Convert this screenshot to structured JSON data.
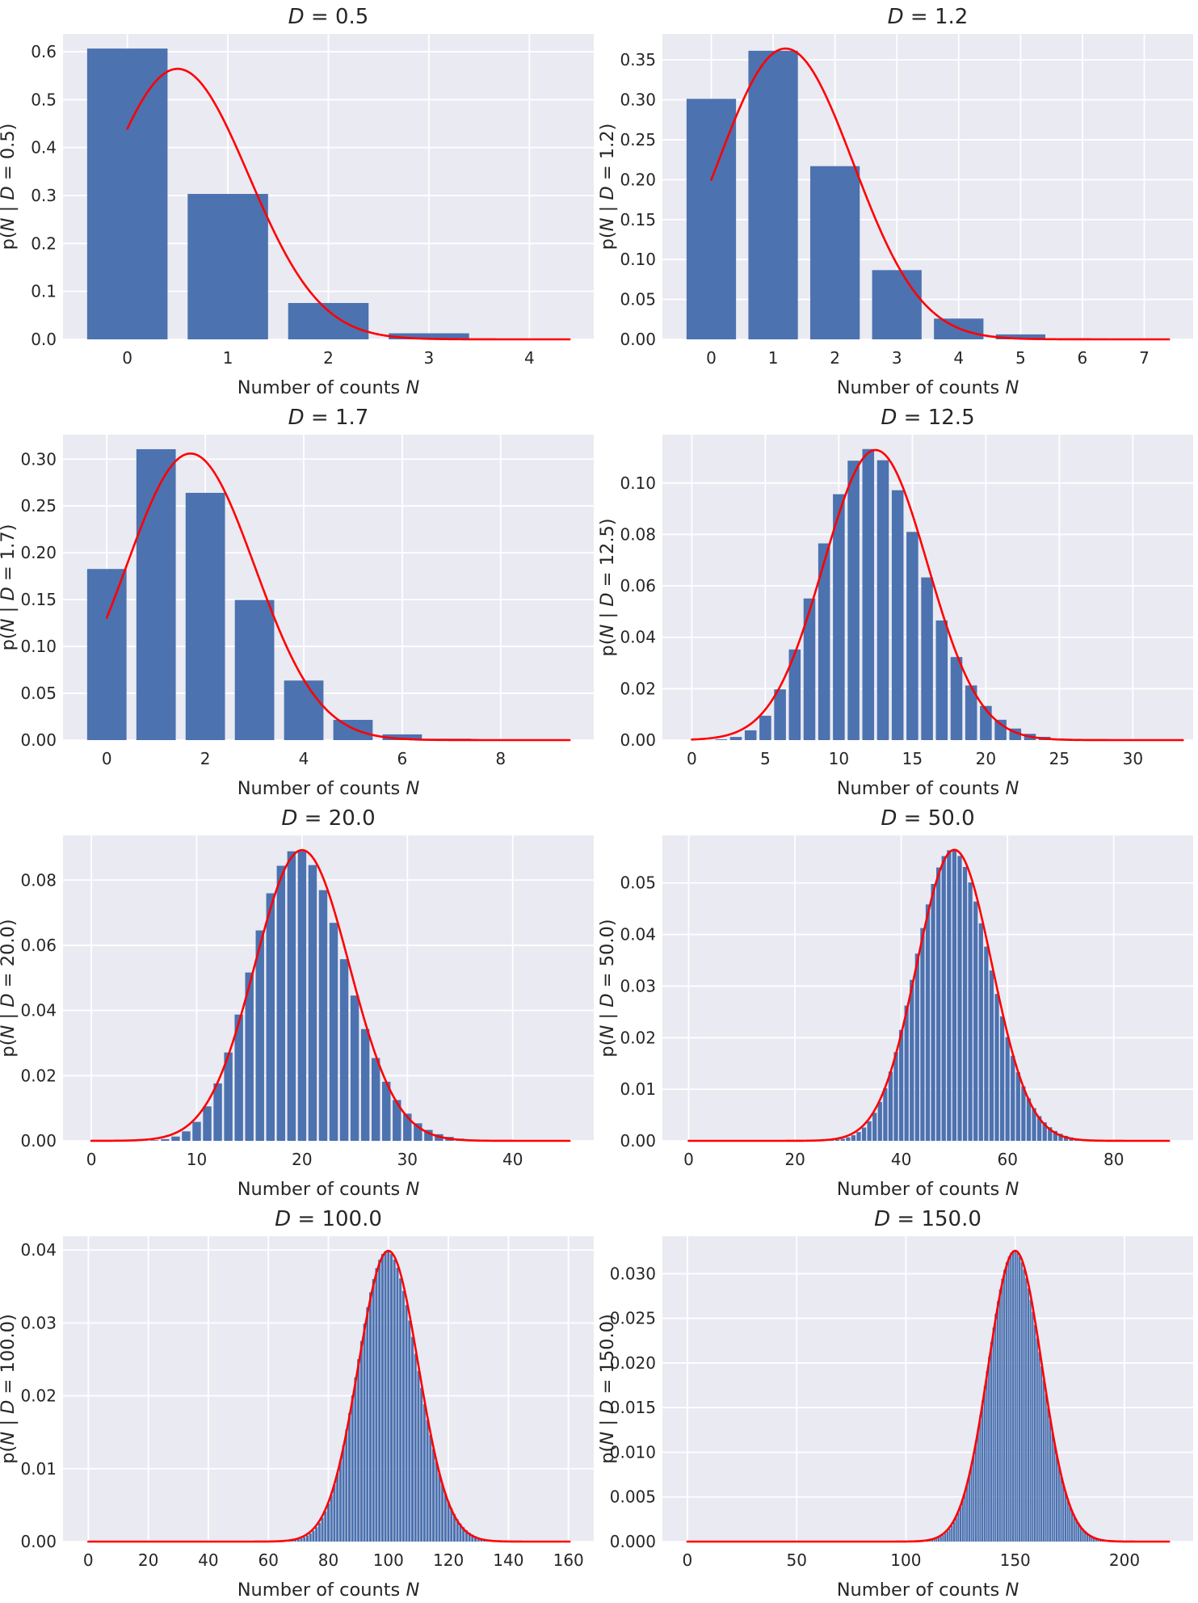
{
  "figure": {
    "description": "Grid of 8 subplots comparing Poisson count distributions (blue bars) with Gaussian approximations (red curve) for increasing mean D",
    "rows": 4,
    "cols": 2,
    "colors": {
      "bar": "#4c72b0",
      "curve": "#ff0000",
      "axes_background": "#eaeaf2",
      "gridline": "#ffffff",
      "text": "#262626",
      "figure_background": "#ffffff"
    }
  },
  "chart_data": [
    {
      "type": "bar",
      "title": "D = 0.5",
      "ylabel": "p(N | D = 0.5)",
      "xlabel": "Number of counts N",
      "D": 0.5,
      "n_max": 4,
      "bar_values": [
        0.6065,
        0.3033,
        0.0758,
        0.0126,
        0.0016
      ],
      "overlay": {
        "type": "gaussian",
        "mean": 0.5,
        "sigma": 0.7071,
        "peak": 0.5642
      },
      "xticks": [
        0,
        1,
        2,
        3,
        4
      ],
      "ytick_labels": [
        "0.0",
        "0.1",
        "0.2",
        "0.3",
        "0.4",
        "0.5",
        "0.6"
      ],
      "xlim": [
        -0.64,
        4.64
      ],
      "ylim": [
        0,
        0.637
      ],
      "grid": true,
      "legend": false
    },
    {
      "type": "bar",
      "title": "D = 1.2",
      "ylabel": "p(N | D = 1.2)",
      "xlabel": "Number of counts N",
      "D": 1.2,
      "n_max": 7,
      "bar_values": [
        0.3012,
        0.3614,
        0.2169,
        0.0867,
        0.026,
        0.0062,
        0.0012,
        0.0002
      ],
      "overlay": {
        "type": "gaussian",
        "mean": 1.2,
        "sigma": 1.0954,
        "peak": 0.3643
      },
      "xticks": [
        0,
        1,
        2,
        3,
        4,
        5,
        6,
        7
      ],
      "ytick_labels": [
        "0.00",
        "0.05",
        "0.10",
        "0.15",
        "0.20",
        "0.25",
        "0.30",
        "0.35"
      ],
      "xlim": [
        -0.79,
        7.79
      ],
      "ylim": [
        0,
        0.3825
      ],
      "grid": true,
      "legend": false
    },
    {
      "type": "bar",
      "title": "D = 1.7",
      "ylabel": "p(N | D = 1.7)",
      "xlabel": "Number of counts N",
      "D": 1.7,
      "n_max": 9,
      "bar_values": [
        0.1827,
        0.3106,
        0.264,
        0.1496,
        0.0636,
        0.0216,
        0.0061,
        0.0015,
        0.0003,
        0.0001
      ],
      "overlay": {
        "type": "gaussian",
        "mean": 1.7,
        "sigma": 1.3038,
        "peak": 0.306
      },
      "xticks": [
        0,
        2,
        4,
        6,
        8
      ],
      "ytick_labels": [
        "0.00",
        "0.05",
        "0.10",
        "0.15",
        "0.20",
        "0.25",
        "0.30"
      ],
      "xlim": [
        -0.89,
        9.89
      ],
      "ylim": [
        0,
        0.3261
      ],
      "grid": true,
      "legend": false
    },
    {
      "type": "bar",
      "title": "D = 12.5",
      "ylabel": "p(N | D = 12.5)",
      "xlabel": "Number of counts N",
      "D": 12.5,
      "n_max": 33,
      "bar_values": null,
      "peak_bar": {
        "n": 12,
        "p": 0.1132
      },
      "overlay": {
        "type": "gaussian",
        "mean": 12.5,
        "sigma": 3.5355,
        "peak": 0.1128
      },
      "xticks": [
        0,
        5,
        10,
        15,
        20,
        25,
        30
      ],
      "ytick_labels": [
        "0.00",
        "0.02",
        "0.04",
        "0.06",
        "0.08",
        "0.10"
      ],
      "xlim": [
        -2.0,
        34.1
      ],
      "ylim": [
        0,
        0.1188
      ],
      "grid": true,
      "legend": false
    },
    {
      "type": "bar",
      "title": "D = 20.0",
      "ylabel": "p(N | D = 20.0)",
      "xlabel": "Number of counts N",
      "D": 20.0,
      "n_max": 45,
      "bar_values": null,
      "peak_bar": {
        "n": 20,
        "p": 0.0888
      },
      "overlay": {
        "type": "gaussian",
        "mean": 20.0,
        "sigma": 4.4721,
        "peak": 0.0892
      },
      "xticks": [
        0,
        10,
        20,
        30,
        40
      ],
      "ytick_labels": [
        "0.00",
        "0.02",
        "0.04",
        "0.06",
        "0.08"
      ],
      "xlim": [
        -2.69,
        47.69
      ],
      "ylim": [
        0,
        0.0937
      ],
      "grid": true,
      "legend": false
    },
    {
      "type": "bar",
      "title": "D = 50.0",
      "ylabel": "p(N | D = 50.0)",
      "xlabel": "Number of counts N",
      "D": 50.0,
      "n_max": 90,
      "bar_values": null,
      "peak_bar": {
        "n": 50,
        "p": 0.0563
      },
      "overlay": {
        "type": "gaussian",
        "mean": 50.0,
        "sigma": 7.0711,
        "peak": 0.0564
      },
      "xticks": [
        0,
        20,
        40,
        60,
        80
      ],
      "ytick_labels": [
        "0.00",
        "0.01",
        "0.02",
        "0.03",
        "0.04",
        "0.05"
      ],
      "xlim": [
        -4.94,
        94.94
      ],
      "ylim": [
        0,
        0.0592
      ],
      "grid": true,
      "legend": false
    },
    {
      "type": "bar",
      "title": "D = 100.0",
      "ylabel": "p(N | D = 100.0)",
      "xlabel": "Number of counts N",
      "D": 100.0,
      "n_max": 160,
      "bar_values": null,
      "peak_bar": {
        "n": 100,
        "p": 0.0399
      },
      "overlay": {
        "type": "gaussian",
        "mean": 100.0,
        "sigma": 10.0,
        "peak": 0.0399
      },
      "xticks": [
        0,
        20,
        40,
        60,
        80,
        100,
        120,
        140,
        160
      ],
      "ytick_labels": [
        "0.00",
        "0.01",
        "0.02",
        "0.03",
        "0.04"
      ],
      "xlim": [
        -8.44,
        168.44
      ],
      "ylim": [
        0,
        0.0419
      ],
      "grid": true,
      "legend": false
    },
    {
      "type": "bar",
      "title": "D = 150.0",
      "ylabel": "p(N | D = 150.0)",
      "xlabel": "Number of counts N",
      "D": 150.0,
      "n_max": 220,
      "bar_values": null,
      "peak_bar": {
        "n": 150,
        "p": 0.0326
      },
      "overlay": {
        "type": "gaussian",
        "mean": 150.0,
        "sigma": 12.2474,
        "peak": 0.0326
      },
      "xticks": [
        0,
        50,
        100,
        150,
        200
      ],
      "ytick_labels": [
        "0.000",
        "0.005",
        "0.010",
        "0.015",
        "0.020",
        "0.025",
        "0.030"
      ],
      "xlim": [
        -11.44,
        231.44
      ],
      "ylim": [
        0,
        0.0342
      ],
      "grid": true,
      "legend": false
    }
  ]
}
